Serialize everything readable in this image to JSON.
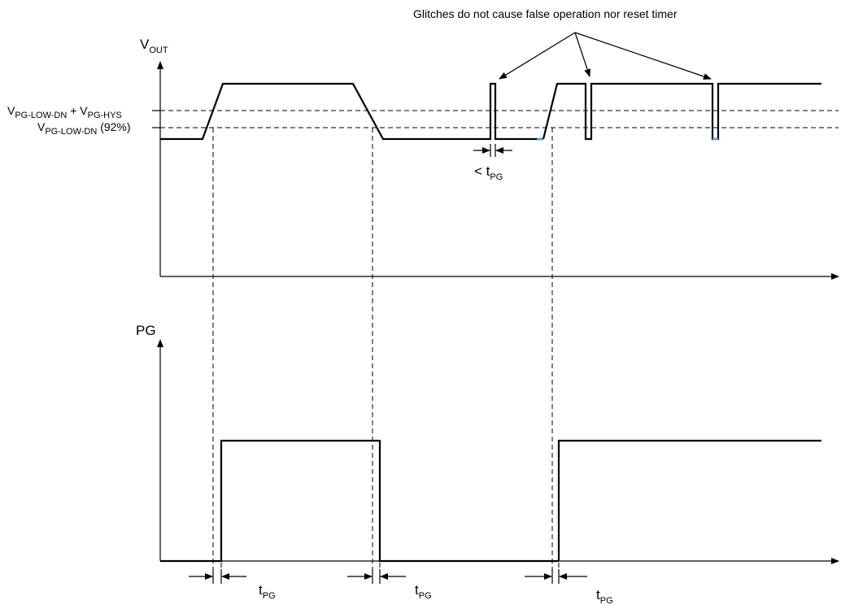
{
  "annotation": "Glitches do not cause false operation nor reset timer",
  "vout_axis": {
    "symbol": "V",
    "subscript": "OUT"
  },
  "pg_axis": {
    "label": "PG"
  },
  "threshold_upper": {
    "part1": "V",
    "sub1": "PG-LOW-DN",
    "plus": " + V",
    "sub2": "PG-HYS"
  },
  "threshold_lower": {
    "part1": "V",
    "sub1": "PG-LOW-DN",
    "suffix": " (92%)"
  },
  "glitch_width_label": {
    "prefix": "< t",
    "subscript": "PG"
  },
  "delay_label": {
    "symbol": "t",
    "subscript": "PG"
  }
}
